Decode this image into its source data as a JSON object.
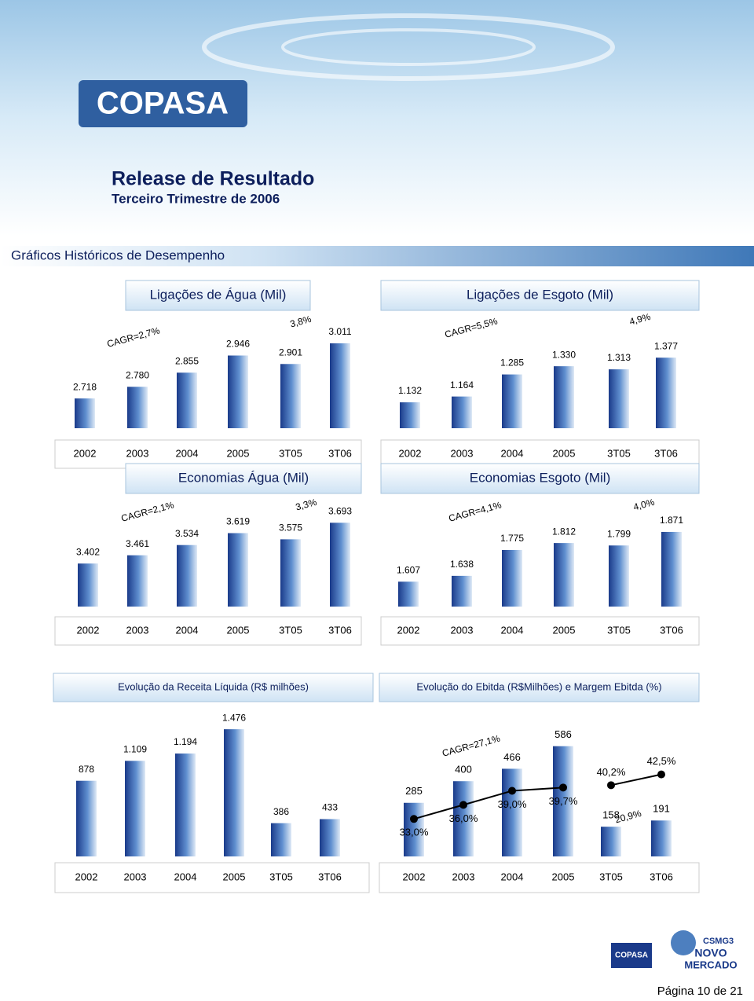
{
  "header": {
    "logo": "COPASA",
    "title": "Release de Resultado",
    "subtitle": "Terceiro Trimestre de 2006"
  },
  "section_title": "Gráficos Históricos de Desempenho",
  "chart_data": [
    {
      "type": "bar",
      "title": "Ligações de Água  (Mil)",
      "categories": [
        "2002",
        "2003",
        "2004",
        "2005",
        "3T05",
        "3T06"
      ],
      "values": [
        2718,
        2780,
        2855,
        2946,
        2901,
        3011
      ],
      "value_labels": [
        "2.718",
        "2.780",
        "2.855",
        "2.946",
        "2.901",
        "3.011"
      ],
      "color": "#1a3a8a",
      "ylim": [
        2560,
        3165
      ],
      "annotations": [
        "CAGR=2,7%",
        "3,8%"
      ]
    },
    {
      "type": "bar",
      "title": "Ligações de Esgoto (Mil)",
      "categories": [
        "2002",
        "2003",
        "2004",
        "2005",
        "3T05",
        "3T06"
      ],
      "values": [
        1132,
        1164,
        1285,
        1330,
        1313,
        1377
      ],
      "value_labels": [
        "1.132",
        "1.164",
        "1.285",
        "1.330",
        "1.313",
        "1.377"
      ],
      "color": "#1a3a8a",
      "ylim": [
        990,
        1615
      ],
      "annotations": [
        "CAGR=5,5%",
        "4,9%"
      ]
    },
    {
      "type": "bar",
      "title": "Economias Água  (Mil)",
      "categories": [
        "2002",
        "2003",
        "2004",
        "2005",
        "3T05",
        "3T06"
      ],
      "values": [
        3402,
        3461,
        3534,
        3619,
        3575,
        3693
      ],
      "value_labels": [
        "3.402",
        "3.461",
        "3.534",
        "3.619",
        "3.575",
        "3.693"
      ],
      "color": "#1a3a8a",
      "ylim": [
        3095,
        3835
      ],
      "annotations": [
        "CAGR=2,1%",
        "3,3%"
      ]
    },
    {
      "type": "bar",
      "title": "Economias Esgoto  (Mil)",
      "categories": [
        "2002",
        "2003",
        "2004",
        "2005",
        "3T05",
        "3T06"
      ],
      "values": [
        1607,
        1638,
        1775,
        1812,
        1799,
        1871
      ],
      "value_labels": [
        "1.607",
        "1.638",
        "1.775",
        "1.812",
        "1.799",
        "1.871"
      ],
      "color": "#1a3a8a",
      "ylim": [
        1475,
        2025
      ],
      "annotations": [
        "CAGR=4,1%",
        "4,0%"
      ]
    },
    {
      "type": "bar",
      "title": "Evolução da Receita Líquida  (R$ milhões)",
      "categories": [
        "2002",
        "2003",
        "2004",
        "2005",
        "3T05",
        "3T06"
      ],
      "values": [
        878,
        1109,
        1194,
        1476,
        386,
        433
      ],
      "value_labels": [
        "878",
        "1.109",
        "1.194",
        "1.476",
        "386",
        "433"
      ],
      "color": "#1a3a8a",
      "ylim": [
        0,
        1550
      ],
      "annotations": []
    },
    {
      "type": "combo",
      "title": "Evolução do Ebitda (R$Milhões) e Margem Ebitda (%)",
      "categories": [
        "2002",
        "2003",
        "2004",
        "2005",
        "3T05",
        "3T06"
      ],
      "values": [
        285,
        400,
        466,
        586,
        158,
        191
      ],
      "color": "#1a3a8a",
      "ylim": [
        0,
        710
      ],
      "y2lim": [
        25,
        53.5
      ],
      "series": [
        {
          "axis": "y2",
          "color": "#000000",
          "values": [
            33.0,
            36.0,
            39.0,
            39.7,
            null,
            null
          ],
          "value_labels": [
            "33,0%",
            "36,0%",
            "39,0%",
            "39,7%",
            null,
            null
          ]
        },
        {
          "axis": "y2",
          "color": "#000000",
          "values": [
            null,
            null,
            null,
            null,
            40.2,
            42.5
          ],
          "value_labels": [
            null,
            null,
            null,
            null,
            "40,2%",
            "42,5%"
          ]
        }
      ],
      "annotations": [
        "CAGR=27,1%",
        "20,9%"
      ]
    }
  ],
  "footer": {
    "logo_left": "COPASA",
    "logo_right_top": "CSMG3",
    "logo_right_middle": "NOVO",
    "logo_right_bottom": "MERCADO",
    "page": "Página 10 de 21"
  }
}
